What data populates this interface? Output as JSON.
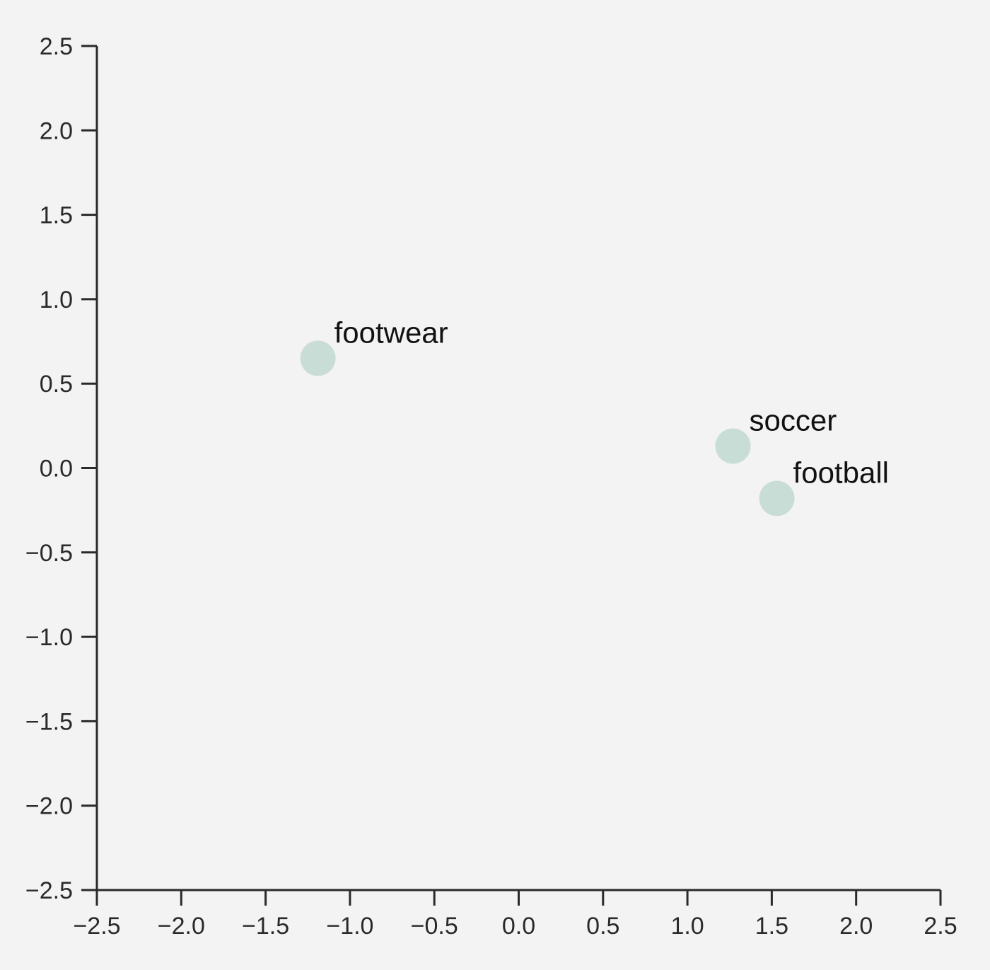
{
  "chart_data": {
    "type": "scatter",
    "title": "",
    "xlabel": "",
    "ylabel": "",
    "xlim": [
      -2.5,
      2.5
    ],
    "ylim": [
      -2.5,
      2.5
    ],
    "x_ticks": [
      "−2.5",
      "−2.0",
      "−1.5",
      "−1.0",
      "−0.5",
      "0.0",
      "0.5",
      "1.0",
      "1.5",
      "2.0",
      "2.5"
    ],
    "y_ticks": [
      "2.5",
      "2.0",
      "1.5",
      "1.0",
      "0.5",
      "0.0",
      "−0.5",
      "−1.0",
      "−1.5",
      "−2.0",
      "−2.5"
    ],
    "grid": false,
    "points": [
      {
        "label": "footwear",
        "x": -1.19,
        "y": 0.65
      },
      {
        "label": "soccer",
        "x": 1.27,
        "y": 0.13
      },
      {
        "label": "football",
        "x": 1.53,
        "y": -0.18
      }
    ],
    "colors": {
      "background": "#f3f3f3",
      "axis": "#2a2a2a",
      "point": "#c9ddd7",
      "label": "#111111"
    }
  }
}
